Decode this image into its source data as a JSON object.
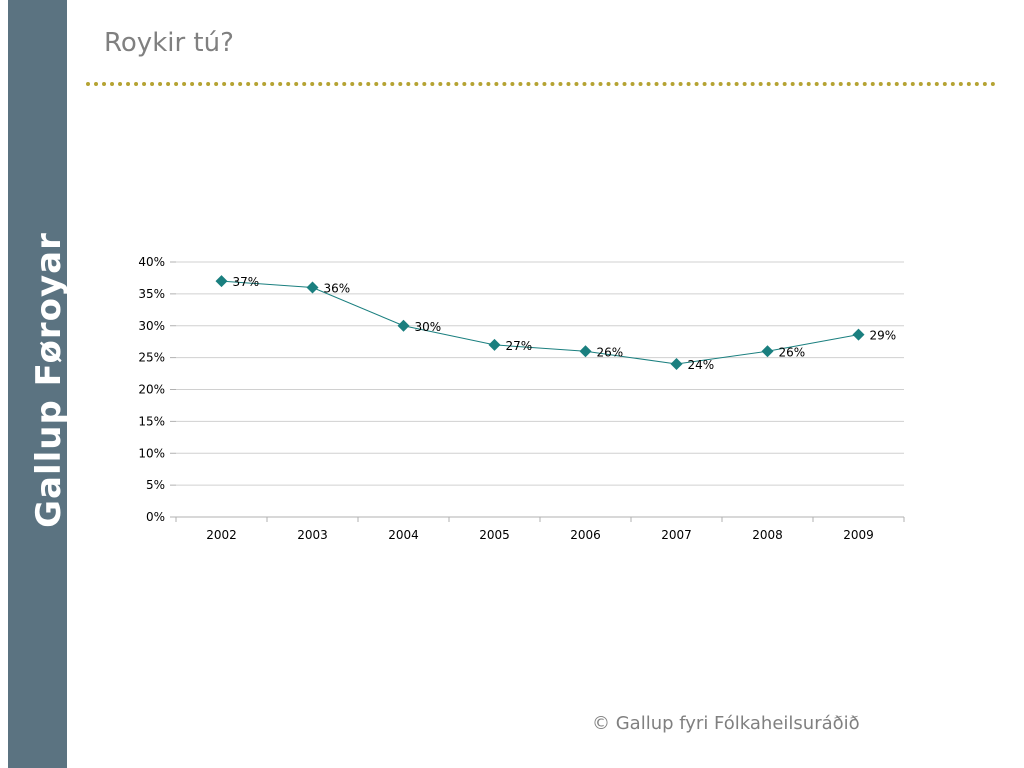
{
  "sidebar": {
    "brand": "Gallup Føroyar"
  },
  "header": {
    "title": "Roykir tú?"
  },
  "footer": {
    "copyright": "© Gallup fyri Fólkaheilsuráðið"
  },
  "colors": {
    "sidebar": "#5b7381",
    "rule": "#b5a333",
    "series": "#1a7f7f",
    "grid": "#d0d0d0"
  },
  "chart_data": {
    "type": "line",
    "categories": [
      "2002",
      "2003",
      "2004",
      "2005",
      "2006",
      "2007",
      "2008",
      "2009"
    ],
    "series": [
      {
        "values": [
          37,
          36,
          30,
          27,
          26,
          24,
          26,
          28.6
        ],
        "labels": [
          "37%",
          "36%",
          "30%",
          "27%",
          "26%",
          "24%",
          "26%",
          "29%"
        ],
        "marker": "diamond"
      }
    ],
    "ylim": [
      0,
      40
    ],
    "yticks": [
      0,
      5,
      10,
      15,
      20,
      25,
      30,
      35,
      40
    ],
    "ytick_labels": [
      "0%",
      "5%",
      "10%",
      "15%",
      "20%",
      "25%",
      "30%",
      "35%",
      "40%"
    ],
    "grid": true,
    "legend": "none",
    "title": "",
    "xlabel": "",
    "ylabel": ""
  }
}
